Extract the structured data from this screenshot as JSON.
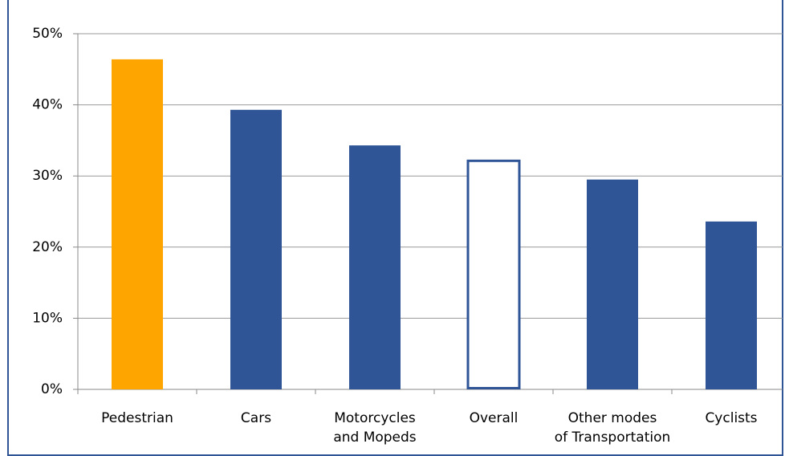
{
  "chart_data": {
    "type": "bar",
    "categories": [
      "Pedestrian",
      "Cars",
      "Motorcycles\nand Mopeds",
      "Overall",
      "Other modes\nof Transportation",
      "Cyclists"
    ],
    "values": [
      46.4,
      39.3,
      34.3,
      32.3,
      29.5,
      23.6
    ],
    "colors": [
      "#ffa500",
      "#2f5597",
      "#2f5597",
      "#2f5597",
      "#2f5597",
      "#2f5597"
    ],
    "hollow": [
      false,
      false,
      false,
      true,
      false,
      false
    ],
    "ylim": [
      0,
      50
    ],
    "yticks": [
      {
        "value": 0,
        "label": "0%"
      },
      {
        "value": 10,
        "label": "10%"
      },
      {
        "value": 20,
        "label": "20%"
      },
      {
        "value": 30,
        "label": "30%"
      },
      {
        "value": 40,
        "label": "40%"
      },
      {
        "value": 50,
        "label": "50%"
      }
    ],
    "grid": true
  }
}
